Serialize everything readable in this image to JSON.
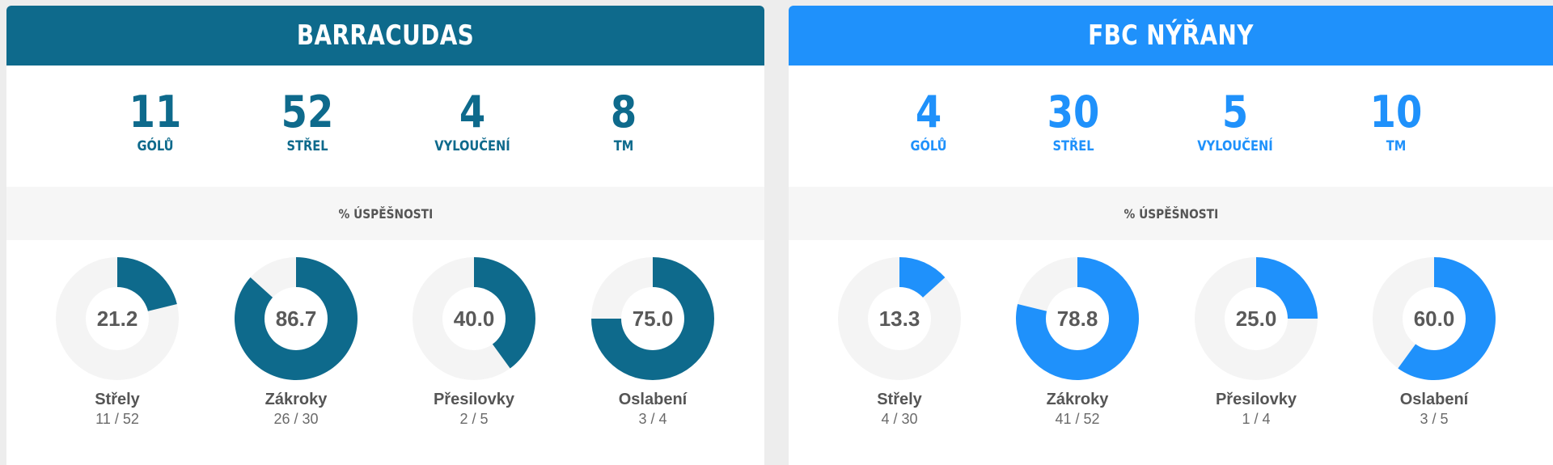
{
  "teams": [
    {
      "name": "BARRACUDAS",
      "color": "#0e6a8c",
      "stats": [
        {
          "value": "11",
          "label": "GÓLŮ"
        },
        {
          "value": "52",
          "label": "STŘEL"
        },
        {
          "value": "4",
          "label": "VYLOUČENÍ"
        },
        {
          "value": "8",
          "label": "TM"
        }
      ],
      "section_title": "% ÚSPĚŠNOSTI",
      "donuts": [
        {
          "pct": 21.2,
          "value_text": "21.2",
          "name": "Střely",
          "fraction": "11 / 52"
        },
        {
          "pct": 86.7,
          "value_text": "86.7",
          "name": "Zákroky",
          "fraction": "26 / 30"
        },
        {
          "pct": 40.0,
          "value_text": "40.0",
          "name": "Přesilovky",
          "fraction": "2 / 5"
        },
        {
          "pct": 75.0,
          "value_text": "75.0",
          "name": "Oslabení",
          "fraction": "3 / 4"
        }
      ]
    },
    {
      "name": "FBC NÝŘANY",
      "color": "#1f91fb",
      "stats": [
        {
          "value": "4",
          "label": "GÓLŮ"
        },
        {
          "value": "30",
          "label": "STŘEL"
        },
        {
          "value": "5",
          "label": "VYLOUČENÍ"
        },
        {
          "value": "10",
          "label": "TM"
        }
      ],
      "section_title": "% ÚSPĚŠNOSTI",
      "donuts": [
        {
          "pct": 13.3,
          "value_text": "13.3",
          "name": "Střely",
          "fraction": "4 / 30"
        },
        {
          "pct": 78.8,
          "value_text": "78.8",
          "name": "Zákroky",
          "fraction": "41 / 52"
        },
        {
          "pct": 25.0,
          "value_text": "25.0",
          "name": "Přesilovky",
          "fraction": "1 / 4"
        },
        {
          "pct": 60.0,
          "value_text": "60.0",
          "name": "Oslabení",
          "fraction": "3 / 5"
        }
      ]
    }
  ],
  "ring_track_color": "#f4f4f4"
}
